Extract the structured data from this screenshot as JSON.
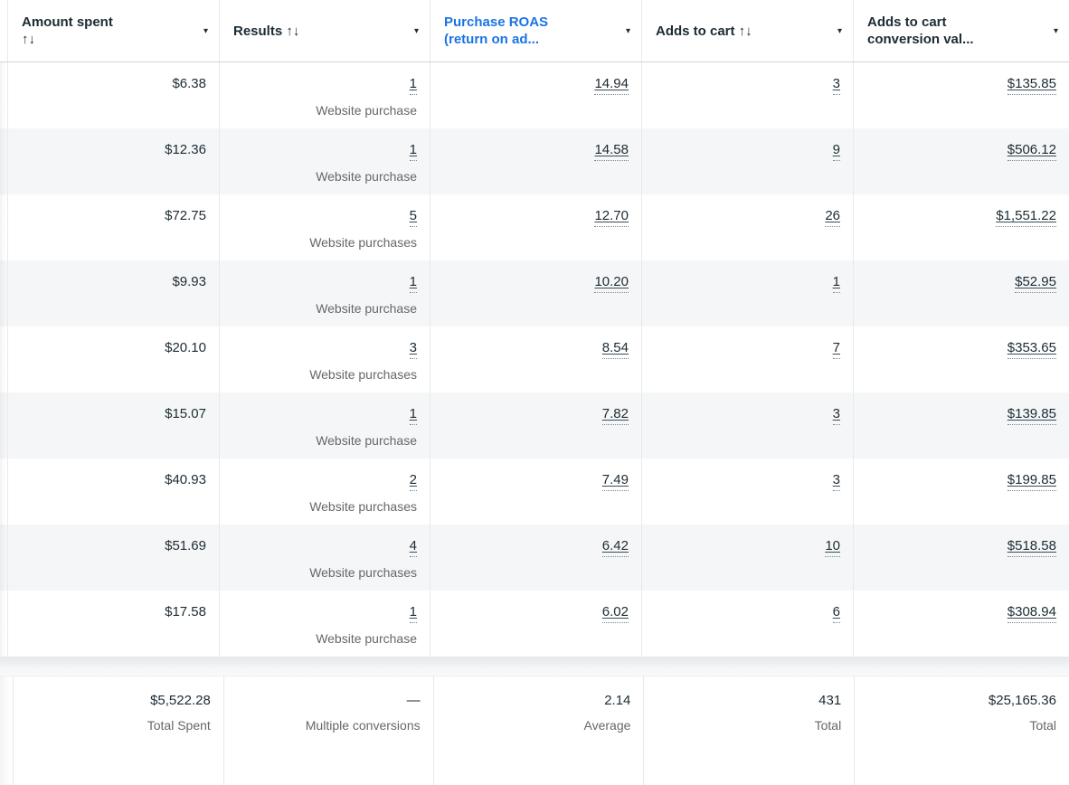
{
  "table": {
    "caret_glyph": "▾",
    "accent_color": "#1b74e4",
    "stripe_color": "#f5f6f7",
    "columns": [
      {
        "key": "amount-spent",
        "line1": "Amount spent",
        "line2": "↑↓"
      },
      {
        "key": "results",
        "line1": "Results ↑↓",
        "line2": ""
      },
      {
        "key": "purchase-roas",
        "line1": "Purchase ROAS",
        "line2": "(return on ad..."
      },
      {
        "key": "adds-to-cart",
        "line1": "Adds to cart ↑↓",
        "line2": ""
      },
      {
        "key": "adds-to-cart-conv-value",
        "line1": "Adds to cart",
        "line2": "conversion val..."
      }
    ],
    "rows": [
      {
        "amount": "$6.38",
        "results": "1",
        "results_label": "Website purchase",
        "roas": "14.94",
        "adds": "3",
        "value": "$135.85"
      },
      {
        "amount": "$12.36",
        "results": "1",
        "results_label": "Website purchase",
        "roas": "14.58",
        "adds": "9",
        "value": "$506.12"
      },
      {
        "amount": "$72.75",
        "results": "5",
        "results_label": "Website purchases",
        "roas": "12.70",
        "adds": "26",
        "value": "$1,551.22"
      },
      {
        "amount": "$9.93",
        "results": "1",
        "results_label": "Website purchase",
        "roas": "10.20",
        "adds": "1",
        "value": "$52.95"
      },
      {
        "amount": "$20.10",
        "results": "3",
        "results_label": "Website purchases",
        "roas": "8.54",
        "adds": "7",
        "value": "$353.65"
      },
      {
        "amount": "$15.07",
        "results": "1",
        "results_label": "Website purchase",
        "roas": "7.82",
        "adds": "3",
        "value": "$139.85"
      },
      {
        "amount": "$40.93",
        "results": "2",
        "results_label": "Website purchases",
        "roas": "7.49",
        "adds": "3",
        "value": "$199.85"
      },
      {
        "amount": "$51.69",
        "results": "4",
        "results_label": "Website purchases",
        "roas": "6.42",
        "adds": "10",
        "value": "$518.58"
      },
      {
        "amount": "$17.58",
        "results": "1",
        "results_label": "Website purchase",
        "roas": "6.02",
        "adds": "6",
        "value": "$308.94"
      }
    ],
    "summary": {
      "amount": "$5,522.28",
      "amount_label": "Total Spent",
      "results": "—",
      "results_label": "Multiple conversions",
      "roas": "2.14",
      "roas_label": "Average",
      "adds": "431",
      "adds_label": "Total",
      "value": "$25,165.36",
      "value_label": "Total"
    }
  }
}
